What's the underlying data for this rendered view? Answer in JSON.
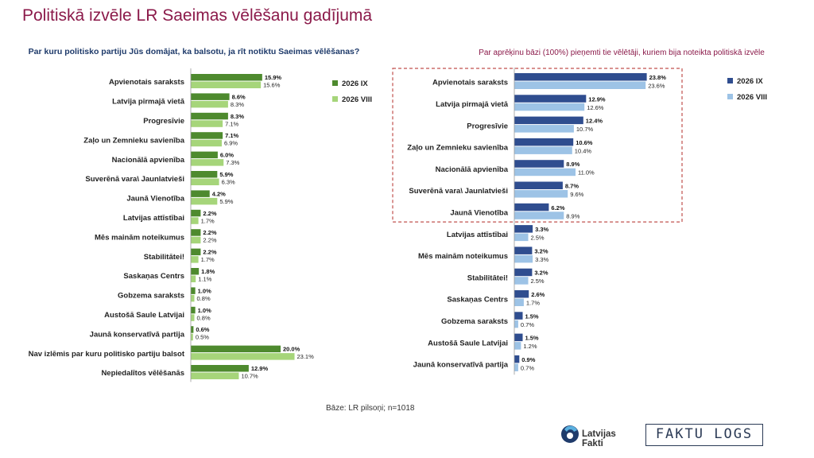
{
  "title": "Politiskā izvēle LR Saeimas vēlēšanu gadījumā",
  "left_subtitle": "Par kuru politisko partiju Jūs domājat, ka balsotu, ja rīt notiktu Saeimas vēlēšanas?",
  "right_subtitle": "Par aprēķinu bāzi (100%) pieņemti tie vēlētāji, kuriem bija noteikta politiskā izvēle",
  "base_note": "Bāze: LR pilsoņi; n=1018",
  "logos": {
    "latvijas_fakti": "Latvijas Fakti",
    "faktu_logs": "FAKTU LOGS"
  },
  "colors": {
    "title": "#8b1a4a",
    "left_ix": "#4e8a2e",
    "left_viii": "#a6d57a",
    "right_ix": "#2f4d8f",
    "right_viii": "#9dc3e6",
    "highlight_box": "#c0504d"
  },
  "chart_data": [
    {
      "type": "bar",
      "orientation": "horizontal",
      "categories": [
        "Apvienotais saraksts",
        "Latvija pirmajā vietā",
        "Progresīvie",
        "Zaļo un Zemnieku savienība",
        "Nacionālā apvienība",
        "Suverēnā vara\\ Jaunlatvieši",
        "Jaunā Vienotība",
        "Latvijas attīstībai",
        "Mēs mainām noteikumus",
        "Stabilitātei!",
        "Saskaņas Centrs",
        "Gobzema saraksts",
        "Austošā Saule Latvijai",
        "Jaunā konservatīvā partija",
        "Nav izlēmis par kuru politisko partiju balsot",
        "Nepiedalītos vēlēšanās"
      ],
      "series": [
        {
          "name": "2026 IX",
          "values": [
            15.9,
            8.6,
            8.3,
            7.1,
            6.0,
            5.9,
            4.2,
            2.2,
            2.2,
            2.2,
            1.8,
            1.0,
            1.0,
            0.6,
            20.0,
            12.9
          ]
        },
        {
          "name": "2026 VIII",
          "values": [
            15.6,
            8.3,
            7.1,
            6.9,
            7.3,
            6.3,
            5.9,
            1.7,
            2.2,
            1.7,
            1.1,
            0.8,
            0.8,
            0.5,
            23.1,
            10.7
          ]
        }
      ],
      "unit": "%",
      "legend_position": "right"
    },
    {
      "type": "bar",
      "orientation": "horizontal",
      "categories": [
        "Apvienotais saraksts",
        "Latvija pirmajā vietā",
        "Progresīvie",
        "Zaļo un Zemnieku savienība",
        "Nacionālā apvienība",
        "Suverēnā vara\\ Jaunlatvieši",
        "Jaunā Vienotība",
        "Latvijas attīstībai",
        "Mēs mainām noteikumus",
        "Stabilitātei!",
        "Saskaņas Centrs",
        "Gobzema saraksts",
        "Austošā Saule Latvijai",
        "Jaunā konservatīvā partija"
      ],
      "series": [
        {
          "name": "2026 IX",
          "values": [
            23.8,
            12.9,
            12.4,
            10.6,
            8.9,
            8.7,
            6.2,
            3.3,
            3.2,
            3.2,
            2.6,
            1.5,
            1.5,
            0.9
          ]
        },
        {
          "name": "2026 VIII",
          "values": [
            23.6,
            12.6,
            10.7,
            10.4,
            11.0,
            9.6,
            8.9,
            2.5,
            3.3,
            2.5,
            1.7,
            0.7,
            1.2,
            0.7
          ]
        }
      ],
      "unit": "%",
      "legend_position": "right",
      "highlighted_categories": 7
    }
  ]
}
